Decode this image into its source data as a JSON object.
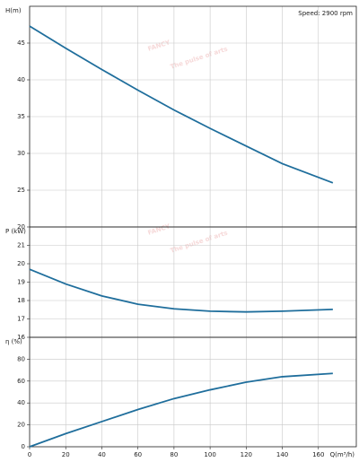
{
  "watermark": {
    "brand": "FANCY",
    "slogan": "The pulse of arts"
  },
  "chart_data": [
    {
      "type": "line",
      "y_label": "H(m)",
      "annotation": "Speed: 2900 rpm",
      "x": [
        0,
        20,
        40,
        60,
        80,
        100,
        120,
        140,
        168
      ],
      "series": [
        {
          "name": "H",
          "color": "#1f6e9c",
          "values": [
            47.3,
            44.3,
            41.4,
            38.6,
            35.9,
            33.4,
            31.0,
            28.6,
            26.0
          ]
        }
      ],
      "xlim": [
        0,
        181
      ],
      "xticks": [
        0,
        20,
        40,
        60,
        80,
        100,
        120,
        140,
        160
      ],
      "ylim": [
        20,
        50
      ],
      "yticks": [
        20,
        25,
        30,
        35,
        40,
        45
      ],
      "grid": true
    },
    {
      "type": "line",
      "y_label": "P (kW)",
      "x": [
        0,
        20,
        40,
        60,
        80,
        100,
        120,
        140,
        168
      ],
      "series": [
        {
          "name": "P",
          "color": "#1f6e9c",
          "values": [
            19.7,
            18.9,
            18.25,
            17.8,
            17.55,
            17.42,
            17.38,
            17.42,
            17.52
          ]
        }
      ],
      "xlim": [
        0,
        181
      ],
      "xticks": [
        0,
        20,
        40,
        60,
        80,
        100,
        120,
        140,
        160
      ],
      "ylim": [
        16,
        22
      ],
      "yticks": [
        16,
        17,
        18,
        19,
        20,
        21
      ],
      "grid": true
    },
    {
      "type": "line",
      "y_label": "η (%)",
      "x_label": "Q(m³/h)",
      "x": [
        0,
        20,
        40,
        60,
        80,
        100,
        120,
        140,
        168
      ],
      "series": [
        {
          "name": "η",
          "color": "#1f6e9c",
          "values": [
            0,
            12,
            23,
            34,
            44,
            52,
            59,
            64,
            67
          ]
        }
      ],
      "xlim": [
        0,
        181
      ],
      "xticks": [
        0,
        20,
        40,
        60,
        80,
        100,
        120,
        140,
        160
      ],
      "ylim": [
        0,
        100
      ],
      "yticks": [
        0,
        20,
        40,
        60,
        80
      ],
      "grid": true
    }
  ]
}
